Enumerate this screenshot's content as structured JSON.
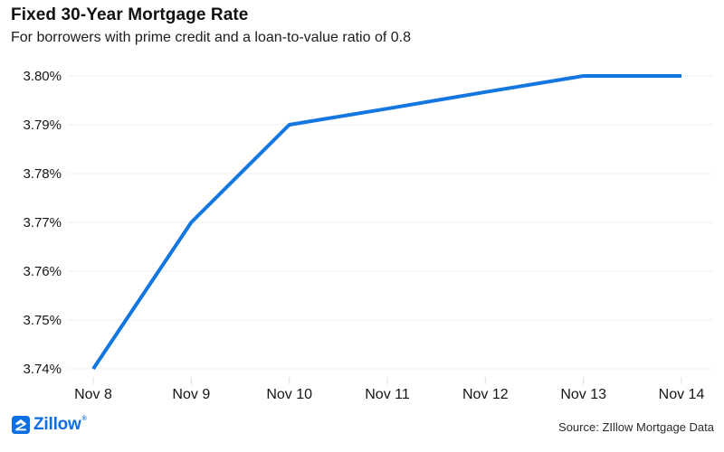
{
  "chart_data": {
    "type": "line",
    "title": "Fixed 30-Year Mortgage Rate",
    "subtitle": "For borrowers with prime credit and a loan-to-value ratio of 0.8",
    "categories": [
      "Nov 8",
      "Nov 9",
      "Nov 10",
      "Nov 11",
      "Nov 12",
      "Nov 13",
      "Nov 14"
    ],
    "series": [
      {
        "name": "Fixed 30-year mortgage rate",
        "values": [
          3.74,
          3.77,
          3.79,
          3.7933,
          3.7967,
          3.8,
          3.8
        ]
      }
    ],
    "yticks": [
      3.8,
      3.79,
      3.78,
      3.77,
      3.76,
      3.75,
      3.74
    ],
    "ytick_suffix": "%",
    "ytick_decimals": 2,
    "ylim": [
      3.74,
      3.8
    ],
    "xlabel": "",
    "ylabel": "",
    "grid": "horizontal-only",
    "legend": "none"
  },
  "footer": {
    "logo_text": "Zillow",
    "logo_trademark": "®",
    "source": "Source: ZIllow Mortgage Data"
  },
  "colors": {
    "brand_blue": "#0d6fe2",
    "line_blue": "#1476e0",
    "gridline": "#efefef",
    "axis_tick": "#dcdcdc",
    "label_text": "#161616"
  }
}
